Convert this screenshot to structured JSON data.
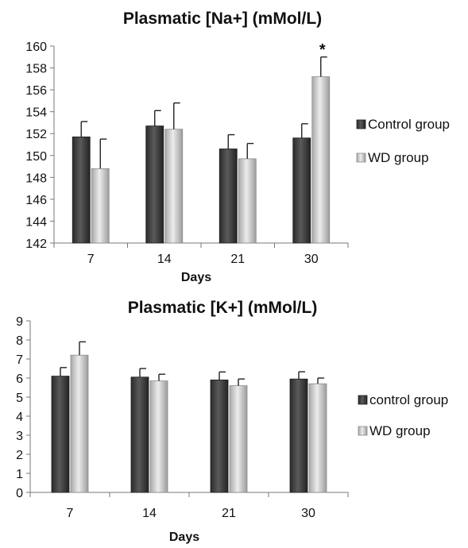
{
  "chart_data": [
    {
      "type": "bar",
      "title": "Plasmatic [Na+] (mMol/L)",
      "xlabel": "Days",
      "ylabel": "",
      "categories": [
        "7",
        "14",
        "21",
        "30"
      ],
      "ylim": [
        142,
        160
      ],
      "yticks": [
        142,
        144,
        146,
        148,
        150,
        152,
        154,
        156,
        158,
        160
      ],
      "grid": false,
      "legend_position": "right",
      "error_bars": true,
      "series": [
        {
          "name": "Control group",
          "color": "#3a3a3a",
          "values": [
            151.7,
            152.7,
            150.6,
            151.6
          ],
          "errors": [
            1.4,
            1.4,
            1.3,
            1.3
          ]
        },
        {
          "name": "WD group",
          "color": "#c8c8c8",
          "values": [
            148.8,
            152.4,
            149.7,
            157.2
          ],
          "errors": [
            2.7,
            2.4,
            1.4,
            1.8
          ]
        }
      ],
      "annotations": [
        {
          "text": "*",
          "category": "30",
          "series": "WD group"
        }
      ]
    },
    {
      "type": "bar",
      "title": "Plasmatic [K+] (mMol/L)",
      "xlabel": "Days",
      "ylabel": "",
      "categories": [
        "7",
        "14",
        "21",
        "30"
      ],
      "ylim": [
        0,
        9
      ],
      "yticks": [
        0,
        1,
        2,
        3,
        4,
        5,
        6,
        7,
        8,
        9
      ],
      "grid": false,
      "legend_position": "right",
      "error_bars": true,
      "series": [
        {
          "name": "control group",
          "color": "#3a3a3a",
          "values": [
            6.1,
            6.05,
            5.9,
            5.95
          ],
          "errors": [
            0.45,
            0.45,
            0.42,
            0.38
          ]
        },
        {
          "name": "WD group",
          "color": "#c8c8c8",
          "values": [
            7.2,
            5.85,
            5.6,
            5.7
          ],
          "errors": [
            0.7,
            0.35,
            0.35,
            0.3
          ]
        }
      ],
      "annotations": []
    }
  ]
}
